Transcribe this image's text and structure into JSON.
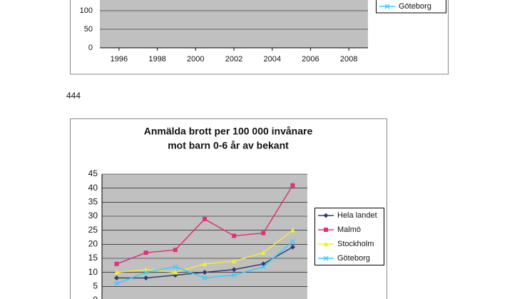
{
  "page_number": "444",
  "chart_data": [
    {
      "type": "line",
      "xticks": [
        1996,
        1998,
        2000,
        2002,
        2004,
        2006,
        2008
      ],
      "xlim": [
        1995,
        2009
      ],
      "ylim": [
        0,
        150
      ],
      "yticks": [
        0,
        50,
        100
      ],
      "grid": true,
      "series": [
        {
          "name": "Göteborg",
          "color": "#33ccff"
        }
      ]
    },
    {
      "type": "line",
      "title": [
        "Anmälda brott per 100 000 invånare",
        "mot barn 0-6 år av bekant"
      ],
      "categories": [
        null,
        null,
        null,
        null,
        null,
        null,
        null
      ],
      "ylim": [
        0,
        45
      ],
      "yticks": [
        0,
        5,
        10,
        15,
        20,
        25,
        30,
        35,
        40,
        45
      ],
      "grid": true,
      "legend": "right",
      "series": [
        {
          "name": "Hela landet",
          "color": "#2f3f6f",
          "marker": "diamond",
          "values": [
            8,
            8,
            9,
            10,
            11,
            13,
            19
          ]
        },
        {
          "name": "Malmö",
          "color": "#e0307a",
          "marker": "square",
          "values": [
            13,
            17,
            18,
            29,
            23,
            24,
            41
          ]
        },
        {
          "name": "Stockholm",
          "color": "#f0f030",
          "marker": "triangle",
          "values": [
            10,
            11,
            10,
            13,
            14,
            17,
            25
          ]
        },
        {
          "name": "Göteborg",
          "color": "#33ccff",
          "marker": "x",
          "values": [
            6,
            10,
            12,
            8,
            9,
            12,
            21
          ]
        }
      ]
    }
  ]
}
